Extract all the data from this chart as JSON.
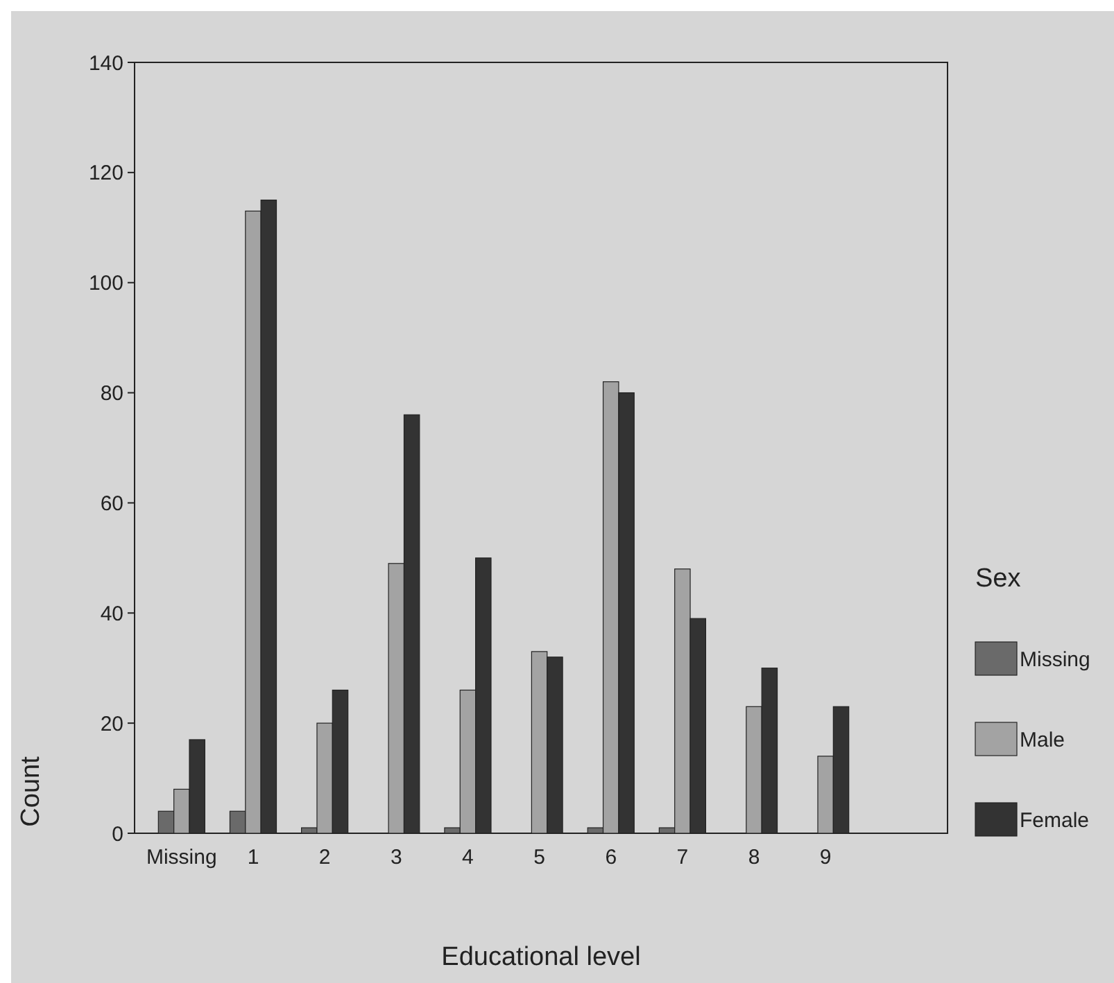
{
  "chart_data": {
    "type": "bar",
    "xlabel": "Educational level",
    "ylabel": "Count",
    "legend_title": "Sex",
    "categories": [
      "Missing",
      "1",
      "2",
      "3",
      "4",
      "5",
      "6",
      "7",
      "8",
      "9"
    ],
    "ylim": [
      0,
      140
    ],
    "yticks": [
      0,
      20,
      40,
      60,
      80,
      100,
      120,
      140
    ],
    "grid": false,
    "legend": "right",
    "series": [
      {
        "name": "Missing",
        "color": "#6a6a6a",
        "values": [
          4,
          4,
          1,
          null,
          1,
          null,
          1,
          1,
          null,
          null
        ]
      },
      {
        "name": "Male",
        "color": "#a3a3a3",
        "values": [
          8,
          113,
          20,
          49,
          26,
          33,
          82,
          48,
          23,
          14
        ]
      },
      {
        "name": "Female",
        "color": "#333333",
        "values": [
          17,
          115,
          26,
          76,
          50,
          32,
          80,
          39,
          30,
          23
        ]
      }
    ]
  }
}
